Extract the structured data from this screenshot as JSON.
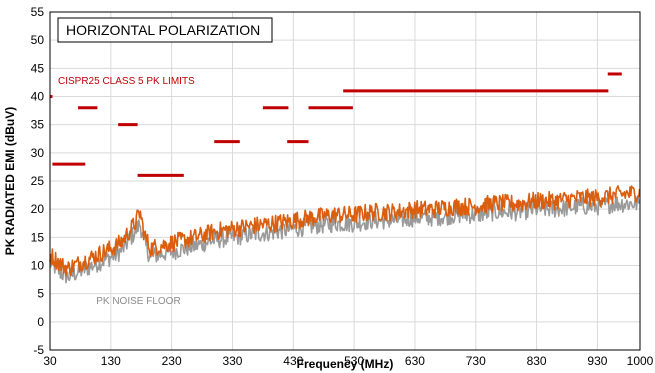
{
  "chart_data": {
    "type": "line",
    "title": "HORIZONTAL POLARIZATION",
    "xlabel": "Frequency (MHz)",
    "ylabel": "PK RADIATED EMI (dBuV)",
    "xlim": [
      30,
      1000
    ],
    "ylim": [
      -5,
      55
    ],
    "x_ticks": [
      30,
      130,
      230,
      330,
      430,
      530,
      630,
      730,
      830,
      930,
      1000
    ],
    "y_ticks": [
      -5,
      0,
      5,
      10,
      15,
      20,
      25,
      30,
      35,
      40,
      45,
      50,
      55
    ],
    "grid": true,
    "annotations": {
      "limits_label": "CISPR25 CLASS 5 PK LIMITS",
      "noise_floor_label": "PK NOISE FLOOR"
    },
    "colors": {
      "limit": "#c00000",
      "emission": "#d95f0e",
      "noise_floor": "#9a9a9a"
    },
    "limit_segments": [
      {
        "x": [
          30,
          34
        ],
        "y": 40
      },
      {
        "x": [
          34,
          88
        ],
        "y": 28
      },
      {
        "x": [
          76,
          108
        ],
        "y": 38
      },
      {
        "x": [
          142,
          174
        ],
        "y": 35
      },
      {
        "x": [
          174,
          250
        ],
        "y": 26
      },
      {
        "x": [
          300,
          342
        ],
        "y": 32
      },
      {
        "x": [
          380,
          422
        ],
        "y": 38
      },
      {
        "x": [
          420,
          455
        ],
        "y": 32
      },
      {
        "x": [
          455,
          528
        ],
        "y": 38
      },
      {
        "x": [
          512,
          948
        ],
        "y": 41
      },
      {
        "x": [
          947,
          970
        ],
        "y": 44
      }
    ],
    "series": [
      {
        "name": "PK NOISE FLOOR",
        "x": [
          30,
          40,
          50,
          60,
          70,
          80,
          90,
          100,
          110,
          120,
          130,
          140,
          150,
          160,
          170,
          178,
          185,
          195,
          210,
          230,
          250,
          270,
          300,
          330,
          360,
          400,
          430,
          460,
          500,
          530,
          560,
          600,
          630,
          660,
          700,
          730,
          760,
          800,
          830,
          860,
          900,
          930,
          960,
          1000
        ],
        "y": [
          10.5,
          9.5,
          8.5,
          8,
          8.5,
          9,
          9.5,
          10,
          10.5,
          11,
          11.5,
          12,
          13,
          14.5,
          16,
          17.5,
          14,
          11.5,
          12,
          12.5,
          13,
          13.5,
          14.5,
          15,
          15.5,
          16,
          16.5,
          17,
          17.5,
          17.5,
          18,
          18,
          18.5,
          18.5,
          19,
          19,
          19.5,
          19.5,
          20,
          20,
          20.5,
          20.5,
          21,
          21
        ]
      },
      {
        "x": [
          30,
          40,
          50,
          60,
          70,
          80,
          90,
          100,
          110,
          120,
          130,
          140,
          150,
          160,
          170,
          178,
          185,
          195,
          210,
          230,
          250,
          270,
          300,
          330,
          360,
          400,
          430,
          460,
          500,
          530,
          560,
          600,
          630,
          660,
          700,
          730,
          760,
          800,
          830,
          860,
          900,
          930,
          960,
          1000
        ],
        "y": [
          12,
          11,
          10,
          9.5,
          10,
          10.5,
          11,
          11.5,
          12,
          12.5,
          13,
          13.5,
          14.5,
          16,
          17.5,
          19.5,
          15.5,
          13,
          13.5,
          14,
          14.5,
          15,
          16,
          16.5,
          17,
          17.5,
          18,
          18.5,
          19,
          19,
          19.5,
          19.5,
          20,
          20,
          20.5,
          20.5,
          21,
          21,
          21.5,
          21.5,
          22,
          22,
          22.5,
          23
        ]
      }
    ]
  }
}
